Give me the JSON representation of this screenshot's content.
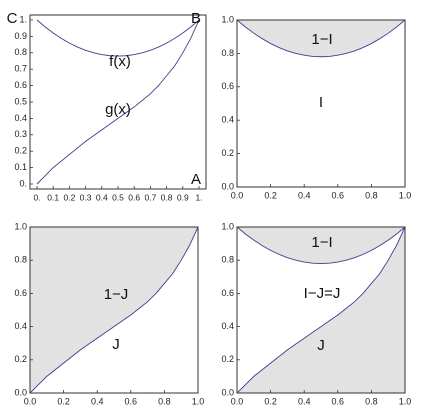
{
  "chart_data": [
    {
      "type": "line",
      "x": [
        0,
        0.05,
        0.1,
        0.15,
        0.2,
        0.25,
        0.3,
        0.35,
        0.4,
        0.45,
        0.5,
        0.55,
        0.6,
        0.65,
        0.7,
        0.75,
        0.8,
        0.85,
        0.9,
        0.95,
        1
      ],
      "series": [
        {
          "color": "#3c3f8f",
          "values": [
            1,
            0.958,
            0.921,
            0.888,
            0.859,
            0.835,
            0.815,
            0.8,
            0.789,
            0.782,
            0.78,
            0.782,
            0.789,
            0.8,
            0.815,
            0.835,
            0.859,
            0.888,
            0.921,
            0.958,
            1
          ]
        },
        {
          "color": "#3c3f8f",
          "values": [
            0,
            0.05,
            0.1,
            0.14,
            0.18,
            0.22,
            0.26,
            0.295,
            0.33,
            0.365,
            0.4,
            0.435,
            0.47,
            0.51,
            0.55,
            0.6,
            0.66,
            0.72,
            0.8,
            0.89,
            1
          ]
        }
      ],
      "xlim": [
        0,
        1
      ],
      "ylim": [
        0,
        1
      ],
      "xticks": [
        {
          "value": 0,
          "label": "0."
        },
        0.1,
        0.2,
        0.3,
        0.4,
        0.5,
        0.6,
        0.7,
        0.8,
        0.9,
        {
          "value": 1,
          "label": "1."
        }
      ],
      "yticks": [
        {
          "value": 0,
          "label": "0."
        },
        0.1,
        0.2,
        0.3,
        0.4,
        0.5,
        0.6,
        0.7,
        0.8,
        0.9,
        {
          "value": 1,
          "label": "1."
        }
      ],
      "annotations": [
        "C",
        "B",
        "A",
        "f(x)",
        "g(x)"
      ]
    },
    {
      "type": "line",
      "x": [
        0,
        0.05,
        0.1,
        0.15,
        0.2,
        0.25,
        0.3,
        0.35,
        0.4,
        0.45,
        0.5,
        0.55,
        0.6,
        0.65,
        0.7,
        0.75,
        0.8,
        0.85,
        0.9,
        0.95,
        1
      ],
      "series": [
        {
          "color": "#3c3f8f",
          "fill": "above",
          "fill_color": "#e2e2e2",
          "values": [
            1,
            0.958,
            0.921,
            0.888,
            0.859,
            0.835,
            0.815,
            0.8,
            0.789,
            0.782,
            0.78,
            0.782,
            0.789,
            0.8,
            0.815,
            0.835,
            0.859,
            0.888,
            0.921,
            0.958,
            1
          ]
        }
      ],
      "xlim": [
        0,
        1
      ],
      "ylim": [
        0,
        1
      ],
      "xticks": [
        {
          "value": 0,
          "label": "0.0"
        },
        0.2,
        0.4,
        0.6,
        0.8,
        {
          "value": 1,
          "label": "1.0"
        }
      ],
      "yticks": [
        {
          "value": 0,
          "label": "0.0"
        },
        0.2,
        0.4,
        0.6,
        0.8,
        {
          "value": 1,
          "label": "1.0"
        }
      ],
      "annotations": [
        "1−I",
        "I"
      ]
    },
    {
      "type": "line",
      "x": [
        0,
        0.05,
        0.1,
        0.15,
        0.2,
        0.25,
        0.3,
        0.35,
        0.4,
        0.45,
        0.5,
        0.55,
        0.6,
        0.65,
        0.7,
        0.75,
        0.8,
        0.85,
        0.9,
        0.95,
        1
      ],
      "series": [
        {
          "color": "#3c3f8f",
          "fill": "above",
          "fill_color": "#e2e2e2",
          "values": [
            0,
            0.05,
            0.1,
            0.14,
            0.18,
            0.22,
            0.26,
            0.295,
            0.33,
            0.365,
            0.4,
            0.435,
            0.47,
            0.51,
            0.55,
            0.6,
            0.66,
            0.72,
            0.8,
            0.89,
            1
          ]
        }
      ],
      "xlim": [
        0,
        1
      ],
      "ylim": [
        0,
        1
      ],
      "xticks": [
        {
          "value": 0,
          "label": "0.0"
        },
        0.2,
        0.4,
        0.6,
        0.8,
        {
          "value": 1,
          "label": "1.0"
        }
      ],
      "yticks": [
        {
          "value": 0,
          "label": "0.0"
        },
        0.2,
        0.4,
        0.6,
        0.8,
        {
          "value": 1,
          "label": "1.0"
        }
      ],
      "annotations": [
        "1−J",
        "J"
      ]
    },
    {
      "type": "line",
      "x": [
        0,
        0.05,
        0.1,
        0.15,
        0.2,
        0.25,
        0.3,
        0.35,
        0.4,
        0.45,
        0.5,
        0.55,
        0.6,
        0.65,
        0.7,
        0.75,
        0.8,
        0.85,
        0.9,
        0.95,
        1
      ],
      "series": [
        {
          "color": "#3c3f8f",
          "fill": "above",
          "fill_color": "#e2e2e2",
          "values": [
            1,
            0.958,
            0.921,
            0.888,
            0.859,
            0.835,
            0.815,
            0.8,
            0.789,
            0.782,
            0.78,
            0.782,
            0.789,
            0.8,
            0.815,
            0.835,
            0.859,
            0.888,
            0.921,
            0.958,
            1
          ]
        },
        {
          "color": "#3c3f8f",
          "fill": "below",
          "fill_color": "#e2e2e2",
          "values": [
            0,
            0.05,
            0.1,
            0.14,
            0.18,
            0.22,
            0.26,
            0.295,
            0.33,
            0.365,
            0.4,
            0.435,
            0.47,
            0.51,
            0.55,
            0.6,
            0.66,
            0.72,
            0.8,
            0.89,
            1
          ]
        }
      ],
      "xlim": [
        0,
        1
      ],
      "ylim": [
        0,
        1
      ],
      "xticks": [
        {
          "value": 0,
          "label": "0.0"
        },
        0.2,
        0.4,
        0.6,
        0.8,
        {
          "value": 1,
          "label": "1.0"
        }
      ],
      "yticks": [
        {
          "value": 0,
          "label": "0.0"
        },
        0.2,
        0.4,
        0.6,
        0.8,
        {
          "value": 1,
          "label": "1.0"
        }
      ],
      "annotations": [
        "1−I",
        "I−J=J",
        "J"
      ]
    }
  ]
}
